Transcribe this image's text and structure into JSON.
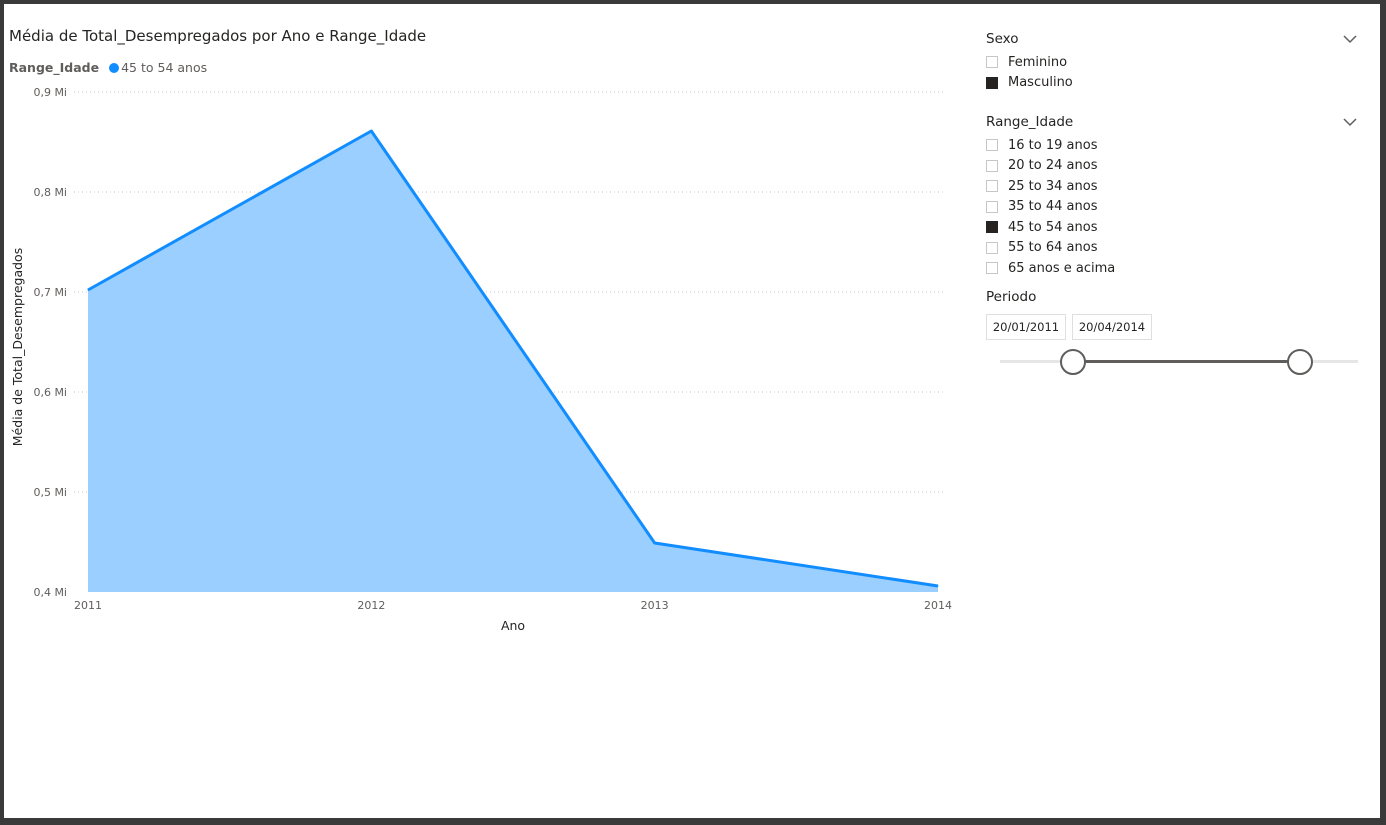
{
  "chart_data": {
    "type": "area",
    "title": "Média de Total_Desempregados por Ano e Range_Idade",
    "legend_title": "Range_Idade",
    "legend_position": "top-left",
    "xlabel": "Ano",
    "ylabel": "Média de Total_Desempregados",
    "categories": [
      "2011",
      "2012",
      "2013",
      "2014"
    ],
    "series": [
      {
        "name": "45 to 54 anos",
        "values": [
          0.702,
          0.861,
          0.449,
          0.406
        ],
        "color": "#118DFF",
        "fill": "#9ACFFF"
      }
    ],
    "ylim": [
      0.4,
      0.9
    ],
    "y_ticks": [
      0.4,
      0.5,
      0.6,
      0.7,
      0.8,
      0.9
    ],
    "y_tick_labels": [
      "0,4 Mi",
      "0,5 Mi",
      "0,6 Mi",
      "0,7 Mi",
      "0,8 Mi",
      "0,9 Mi"
    ],
    "grid": true
  },
  "slicers": {
    "sexo": {
      "title": "Sexo",
      "items": [
        {
          "label": "Feminino",
          "checked": false
        },
        {
          "label": "Masculino",
          "checked": true
        }
      ]
    },
    "range_idade": {
      "title": "Range_Idade",
      "items": [
        {
          "label": "16 to 19 anos",
          "checked": false
        },
        {
          "label": "20 to 24 anos",
          "checked": false
        },
        {
          "label": "25 to 34 anos",
          "checked": false
        },
        {
          "label": "35 to 44 anos",
          "checked": false
        },
        {
          "label": "45 to 54 anos",
          "checked": true
        },
        {
          "label": "55 to 64 anos",
          "checked": false
        },
        {
          "label": "65 anos e acima",
          "checked": false
        }
      ]
    },
    "periodo": {
      "title": "Periodo",
      "start": "20/01/2011",
      "end": "20/04/2014"
    }
  },
  "colors": {
    "accent": "#118DFF",
    "area_fill": "#9ACFFF",
    "checked": "#252423"
  },
  "icons": {
    "collapse": "chevron-down-icon"
  }
}
